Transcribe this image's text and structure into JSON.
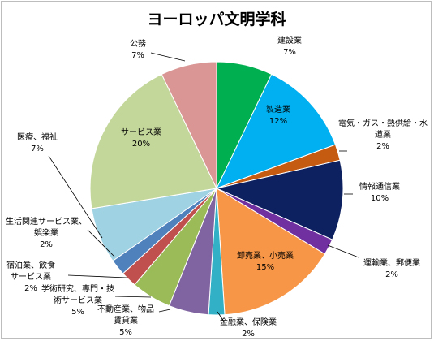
{
  "chart_data": {
    "type": "pie",
    "title": "ヨーロッパ文明学科",
    "slices": [
      {
        "name": "建設業",
        "value": 7,
        "label": "7%",
        "color": "#00b050"
      },
      {
        "name": "製造業",
        "value": 12,
        "label": "12%",
        "color": "#00b0f0"
      },
      {
        "name": "電気・ガス・熱供給・水道業",
        "value": 2,
        "label": "2%",
        "color": "#c55a11"
      },
      {
        "name": "情報通信業",
        "value": 10,
        "label": "10%",
        "color": "#0d2060"
      },
      {
        "name": "運輸業、郵便業",
        "value": 2,
        "label": "2%",
        "color": "#7030a0"
      },
      {
        "name": "卸売業、小売業",
        "value": 15,
        "label": "15%",
        "color": "#f79646"
      },
      {
        "name": "金融業、保険業",
        "value": 2,
        "label": "2%",
        "color": "#31b0c6"
      },
      {
        "name": "不動産業、物品賃貸業",
        "value": 5,
        "label": "5%",
        "color": "#8064a2"
      },
      {
        "name": "学術研究、専門・技術サービス業",
        "value": 5,
        "label": "5%",
        "color": "#9bbb59"
      },
      {
        "name": "宿泊業、飲食サービス業",
        "value": 2,
        "label": "2%",
        "color": "#c0504d"
      },
      {
        "name": "生活関連サービス業、娯楽業",
        "value": 2,
        "label": "2%",
        "color": "#4f81bd"
      },
      {
        "name": "医療、福祉",
        "value": 7,
        "label": "7%",
        "color": "#9fd2e3"
      },
      {
        "name": "サービス業",
        "value": 20,
        "label": "20%",
        "color": "#c4d79b"
      },
      {
        "name": "公務",
        "value": 7,
        "label": "7%",
        "color": "#d99694"
      }
    ],
    "label_lines": [
      [
        "建設業",
        "7%"
      ],
      [
        "製造業",
        "12%"
      ],
      [
        "電気・ガス・熱供給・水",
        "道業",
        "2%"
      ],
      [
        "情報通信業",
        "10%"
      ],
      [
        "運輸業、郵便業",
        "2%"
      ],
      [
        "卸売業、小売業",
        "15%"
      ],
      [
        "金融業、保険業",
        "2%"
      ],
      [
        "不動産業、物品",
        "賃貸業",
        "5%"
      ],
      [
        "学術研究、専門・技",
        "術サービス業",
        "5%"
      ],
      [
        "宿泊業、飲食",
        "サービス業",
        "2%"
      ],
      [
        "生活関連サービス業、",
        "娯楽業",
        "2%"
      ],
      [
        "医療、福祉",
        "7%"
      ],
      [
        "サービス業",
        "20%"
      ],
      [
        "公務",
        "7%"
      ]
    ],
    "legend": "none"
  }
}
